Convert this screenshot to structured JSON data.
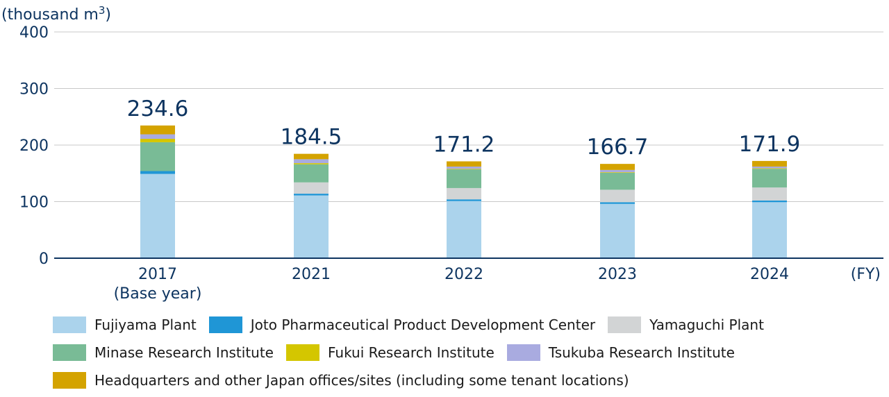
{
  "chart_data": {
    "type": "bar",
    "stacked": true,
    "unit_label": "(thousand m",
    "unit_superscript": "3",
    "unit_close": ")",
    "x_unit": "(FY)",
    "ylim": [
      0,
      400
    ],
    "yticks": [
      "0",
      "100",
      "200",
      "300",
      "400"
    ],
    "categories": [
      "2017",
      "2021",
      "2022",
      "2023",
      "2024"
    ],
    "category_sublabels": [
      "(Base year)",
      "",
      "",
      "",
      ""
    ],
    "totals": [
      "234.6",
      "184.5",
      "171.2",
      "166.7",
      "171.9"
    ],
    "series": [
      {
        "name": "Fujiyama Plant",
        "color": "#abd3ec",
        "values": [
          149,
          111,
          101,
          96,
          99
        ]
      },
      {
        "name": "Joto Pharmaceutical Product Development Center",
        "color": "#1f96d6",
        "values": [
          5,
          3,
          3,
          3,
          3
        ]
      },
      {
        "name": "Yamaguchi Plant",
        "color": "#d2d4d5",
        "values": [
          0,
          20,
          20,
          22,
          23
        ]
      },
      {
        "name": "Minase Research Institute",
        "color": "#79bb96",
        "values": [
          51,
          32,
          33,
          30,
          33
        ]
      },
      {
        "name": "Fukui Research Institute",
        "color": "#d4c600",
        "values": [
          6,
          2,
          1,
          1,
          1
        ]
      },
      {
        "name": "Tsukuba Research Institute",
        "color": "#a9abe0",
        "values": [
          8,
          7,
          4,
          4,
          3
        ]
      },
      {
        "name": "Headquarters and other Japan offices/sites (including some tenant locations)",
        "color": "#d4a300",
        "values": [
          15.6,
          9.5,
          9.2,
          10.7,
          9.9
        ]
      }
    ]
  }
}
